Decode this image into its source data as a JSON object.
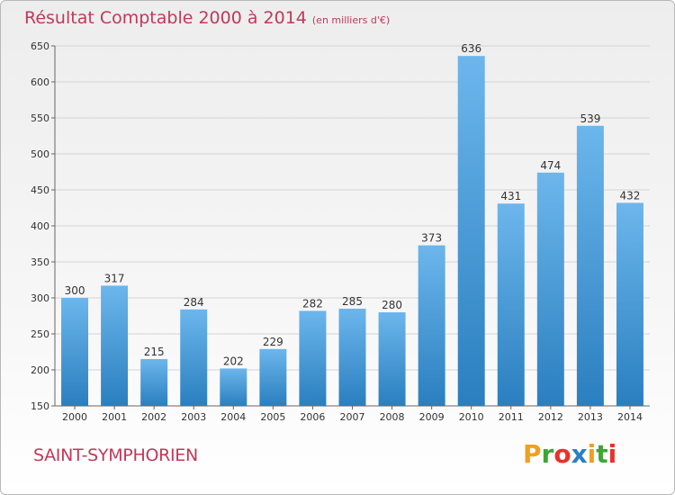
{
  "header": {
    "title": "Résultat Comptable 2000 à 2014",
    "subtitle": "(en milliers d'€)"
  },
  "footer": {
    "commune": "SAINT-SYMPHORIEN",
    "brand_letters": [
      "P",
      "r",
      "o",
      "x",
      "i",
      "t",
      "i"
    ],
    "brand_colors": [
      "#f0a020",
      "#3fa535",
      "#e6332a",
      "#2a7fc2",
      "#f0a020",
      "#3fa535",
      "#e6332a"
    ]
  },
  "chart_data": {
    "type": "bar",
    "title": "Résultat Comptable 2000 à 2014",
    "subtitle": "(en milliers d'€)",
    "xlabel": "",
    "ylabel": "",
    "categories": [
      "2000",
      "2001",
      "2002",
      "2003",
      "2004",
      "2005",
      "2006",
      "2007",
      "2008",
      "2009",
      "2010",
      "2011",
      "2012",
      "2013",
      "2014"
    ],
    "values": [
      300,
      317,
      215,
      284,
      202,
      229,
      282,
      285,
      280,
      373,
      636,
      431,
      474,
      539,
      432
    ],
    "ylim": [
      150,
      650
    ],
    "yticks": [
      150,
      200,
      250,
      300,
      350,
      400,
      450,
      500,
      550,
      600,
      650
    ],
    "grid": true,
    "bar_color_light": "#6cb6ec",
    "bar_color_dark": "#2a7fbf",
    "label_color": "#333333"
  }
}
